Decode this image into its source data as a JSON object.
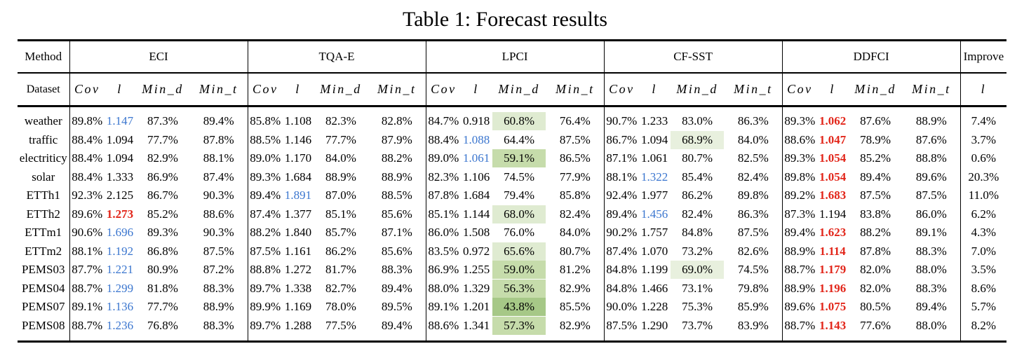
{
  "title": "Table 1: Forecast results",
  "header": {
    "method_label": "Method",
    "dataset_label": "Dataset",
    "groups": [
      "ECI",
      "TQA-E",
      "LPCI",
      "CF-SST",
      "DDFCI"
    ],
    "subcols": [
      "Cov",
      "l",
      "Min_d",
      "Min_t"
    ],
    "improve_label": "Improve",
    "improve_subcol": "l"
  },
  "colors": {
    "best_text": "#e2261a",
    "second_text": "#3b76cf",
    "green_levels": {
      "g1": "#e8f0de",
      "g2": "#dfebd1",
      "g3": "#c6dcab",
      "g4": "#a6c887"
    }
  },
  "rows": [
    {
      "dataset": "weather",
      "cells": [
        [
          "89.8%"
        ],
        [
          "1.147",
          "b"
        ],
        [
          "87.3%"
        ],
        [
          "89.4%"
        ],
        [
          "85.8%"
        ],
        [
          "1.108"
        ],
        [
          "82.3%"
        ],
        [
          "82.8%"
        ],
        [
          "84.7%"
        ],
        [
          "0.918"
        ],
        [
          "60.8%",
          "g2"
        ],
        [
          "76.4%"
        ],
        [
          "90.7%"
        ],
        [
          "1.233"
        ],
        [
          "83.0%"
        ],
        [
          "86.3%"
        ],
        [
          "89.3%"
        ],
        [
          "1.062",
          "r"
        ],
        [
          "87.6%"
        ],
        [
          "88.9%"
        ]
      ],
      "improve": "7.4%"
    },
    {
      "dataset": "traffic",
      "cells": [
        [
          "88.4%"
        ],
        [
          "1.094"
        ],
        [
          "77.7%"
        ],
        [
          "87.8%"
        ],
        [
          "88.5%"
        ],
        [
          "1.146"
        ],
        [
          "77.7%"
        ],
        [
          "87.9%"
        ],
        [
          "88.4%"
        ],
        [
          "1.088",
          "b"
        ],
        [
          "64.4%"
        ],
        [
          "87.5%"
        ],
        [
          "86.7%"
        ],
        [
          "1.094"
        ],
        [
          "68.9%",
          "g1"
        ],
        [
          "84.0%"
        ],
        [
          "88.6%"
        ],
        [
          "1.047",
          "r"
        ],
        [
          "78.9%"
        ],
        [
          "87.6%"
        ]
      ],
      "improve": "3.7%"
    },
    {
      "dataset": "electriticy",
      "cells": [
        [
          "88.4%"
        ],
        [
          "1.094"
        ],
        [
          "82.9%"
        ],
        [
          "88.1%"
        ],
        [
          "89.0%"
        ],
        [
          "1.170"
        ],
        [
          "84.0%"
        ],
        [
          "88.2%"
        ],
        [
          "89.0%"
        ],
        [
          "1.061",
          "b"
        ],
        [
          "59.1%",
          "g3"
        ],
        [
          "86.5%"
        ],
        [
          "87.1%"
        ],
        [
          "1.061"
        ],
        [
          "80.7%"
        ],
        [
          "82.5%"
        ],
        [
          "89.3%"
        ],
        [
          "1.054",
          "r"
        ],
        [
          "85.2%"
        ],
        [
          "88.8%"
        ]
      ],
      "improve": "0.6%"
    },
    {
      "dataset": "solar",
      "cells": [
        [
          "88.4%"
        ],
        [
          "1.333"
        ],
        [
          "86.9%"
        ],
        [
          "87.4%"
        ],
        [
          "89.3%"
        ],
        [
          "1.684"
        ],
        [
          "88.9%"
        ],
        [
          "88.9%"
        ],
        [
          "82.3%"
        ],
        [
          "1.106"
        ],
        [
          "74.5%"
        ],
        [
          "77.9%"
        ],
        [
          "88.1%"
        ],
        [
          "1.322",
          "b"
        ],
        [
          "85.4%"
        ],
        [
          "82.4%"
        ],
        [
          "89.8%"
        ],
        [
          "1.054",
          "r"
        ],
        [
          "89.4%"
        ],
        [
          "89.6%"
        ]
      ],
      "improve": "20.3%"
    },
    {
      "dataset": "ETTh1",
      "cells": [
        [
          "92.3%"
        ],
        [
          "2.125"
        ],
        [
          "86.7%"
        ],
        [
          "90.3%"
        ],
        [
          "89.4%"
        ],
        [
          "1.891",
          "b"
        ],
        [
          "87.0%"
        ],
        [
          "88.5%"
        ],
        [
          "87.8%"
        ],
        [
          "1.684"
        ],
        [
          "79.4%"
        ],
        [
          "85.8%"
        ],
        [
          "92.4%"
        ],
        [
          "1.977"
        ],
        [
          "86.2%"
        ],
        [
          "89.8%"
        ],
        [
          "89.2%"
        ],
        [
          "1.683",
          "r"
        ],
        [
          "87.5%"
        ],
        [
          "87.5%"
        ]
      ],
      "improve": "11.0%"
    },
    {
      "dataset": "ETTh2",
      "cells": [
        [
          "89.6%"
        ],
        [
          "1.273",
          "r"
        ],
        [
          "85.2%"
        ],
        [
          "88.6%"
        ],
        [
          "87.4%"
        ],
        [
          "1.377"
        ],
        [
          "85.1%"
        ],
        [
          "85.6%"
        ],
        [
          "85.1%"
        ],
        [
          "1.144"
        ],
        [
          "68.0%",
          "g2"
        ],
        [
          "82.4%"
        ],
        [
          "89.4%"
        ],
        [
          "1.456",
          "b"
        ],
        [
          "82.4%"
        ],
        [
          "86.3%"
        ],
        [
          "87.3%"
        ],
        [
          "1.194"
        ],
        [
          "83.8%"
        ],
        [
          "86.0%"
        ]
      ],
      "improve": "6.2%"
    },
    {
      "dataset": "ETTm1",
      "cells": [
        [
          "90.6%"
        ],
        [
          "1.696",
          "b"
        ],
        [
          "89.3%"
        ],
        [
          "90.3%"
        ],
        [
          "88.2%"
        ],
        [
          "1.840"
        ],
        [
          "85.7%"
        ],
        [
          "87.1%"
        ],
        [
          "86.0%"
        ],
        [
          "1.508"
        ],
        [
          "76.0%"
        ],
        [
          "84.0%"
        ],
        [
          "90.2%"
        ],
        [
          "1.757"
        ],
        [
          "84.8%"
        ],
        [
          "87.5%"
        ],
        [
          "89.4%"
        ],
        [
          "1.623",
          "r"
        ],
        [
          "88.2%"
        ],
        [
          "89.1%"
        ]
      ],
      "improve": "4.3%"
    },
    {
      "dataset": "ETTm2",
      "cells": [
        [
          "88.1%"
        ],
        [
          "1.192",
          "b"
        ],
        [
          "86.8%"
        ],
        [
          "87.5%"
        ],
        [
          "87.5%"
        ],
        [
          "1.161"
        ],
        [
          "86.2%"
        ],
        [
          "85.6%"
        ],
        [
          "83.5%"
        ],
        [
          "0.972"
        ],
        [
          "65.6%",
          "g2"
        ],
        [
          "80.7%"
        ],
        [
          "87.4%"
        ],
        [
          "1.070"
        ],
        [
          "73.2%"
        ],
        [
          "82.6%"
        ],
        [
          "88.9%"
        ],
        [
          "1.114",
          "r"
        ],
        [
          "87.8%"
        ],
        [
          "88.3%"
        ]
      ],
      "improve": "7.0%"
    },
    {
      "dataset": "PEMS03",
      "cells": [
        [
          "87.7%"
        ],
        [
          "1.221",
          "b"
        ],
        [
          "80.9%"
        ],
        [
          "87.2%"
        ],
        [
          "88.8%"
        ],
        [
          "1.272"
        ],
        [
          "81.7%"
        ],
        [
          "88.3%"
        ],
        [
          "86.9%"
        ],
        [
          "1.255"
        ],
        [
          "59.0%",
          "g3"
        ],
        [
          "81.2%"
        ],
        [
          "84.8%"
        ],
        [
          "1.199"
        ],
        [
          "69.0%",
          "g1"
        ],
        [
          "74.5%"
        ],
        [
          "88.7%"
        ],
        [
          "1.179",
          "r"
        ],
        [
          "82.0%"
        ],
        [
          "88.0%"
        ]
      ],
      "improve": "3.5%"
    },
    {
      "dataset": "PEMS04",
      "cells": [
        [
          "88.7%"
        ],
        [
          "1.299",
          "b"
        ],
        [
          "81.8%"
        ],
        [
          "88.3%"
        ],
        [
          "89.7%"
        ],
        [
          "1.338"
        ],
        [
          "82.7%"
        ],
        [
          "89.4%"
        ],
        [
          "88.0%"
        ],
        [
          "1.329"
        ],
        [
          "56.3%",
          "g3"
        ],
        [
          "82.9%"
        ],
        [
          "84.8%"
        ],
        [
          "1.466"
        ],
        [
          "73.1%"
        ],
        [
          "79.8%"
        ],
        [
          "88.9%"
        ],
        [
          "1.196",
          "r"
        ],
        [
          "82.0%"
        ],
        [
          "88.3%"
        ]
      ],
      "improve": "8.6%"
    },
    {
      "dataset": "PEMS07",
      "cells": [
        [
          "89.1%"
        ],
        [
          "1.136",
          "b"
        ],
        [
          "77.7%"
        ],
        [
          "88.9%"
        ],
        [
          "89.9%"
        ],
        [
          "1.169"
        ],
        [
          "78.0%"
        ],
        [
          "89.5%"
        ],
        [
          "89.1%"
        ],
        [
          "1.201"
        ],
        [
          "43.8%",
          "g4"
        ],
        [
          "85.5%"
        ],
        [
          "90.0%"
        ],
        [
          "1.228"
        ],
        [
          "75.3%"
        ],
        [
          "85.9%"
        ],
        [
          "89.6%"
        ],
        [
          "1.075",
          "r"
        ],
        [
          "80.5%"
        ],
        [
          "89.4%"
        ]
      ],
      "improve": "5.7%"
    },
    {
      "dataset": "PEMS08",
      "cells": [
        [
          "88.7%"
        ],
        [
          "1.236",
          "b"
        ],
        [
          "76.8%"
        ],
        [
          "88.3%"
        ],
        [
          "89.7%"
        ],
        [
          "1.288"
        ],
        [
          "77.5%"
        ],
        [
          "89.4%"
        ],
        [
          "88.6%"
        ],
        [
          "1.341"
        ],
        [
          "57.3%",
          "g3"
        ],
        [
          "82.9%"
        ],
        [
          "87.5%"
        ],
        [
          "1.290"
        ],
        [
          "73.7%"
        ],
        [
          "83.9%"
        ],
        [
          "88.7%"
        ],
        [
          "1.143",
          "r"
        ],
        [
          "77.6%"
        ],
        [
          "88.0%"
        ]
      ],
      "improve": "8.2%"
    }
  ]
}
